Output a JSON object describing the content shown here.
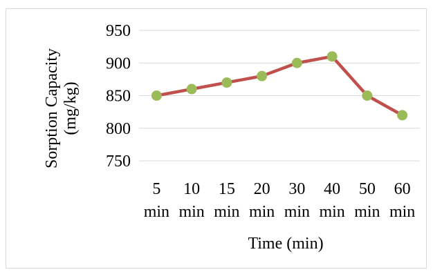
{
  "chart_data": {
    "type": "line",
    "title": "",
    "xlabel": "Time (min)",
    "ylabel_lines": [
      "Sorption Capacity",
      "(mg/kg)"
    ],
    "categories": [
      "5",
      "10",
      "15",
      "20",
      "30",
      "40",
      "50",
      "60"
    ],
    "category_unit": "min",
    "series": [
      {
        "values": [
          850,
          860,
          870,
          880,
          900,
          910,
          850,
          820
        ]
      }
    ],
    "ylim": [
      750,
      950
    ],
    "yticks": [
      750,
      800,
      850,
      900,
      950
    ],
    "grid": true,
    "legend": "none",
    "colors": {
      "line": "#c0504d",
      "marker": "#9bbb59",
      "grid": "#d9d9d9",
      "frame": "#d9d9d9"
    }
  }
}
